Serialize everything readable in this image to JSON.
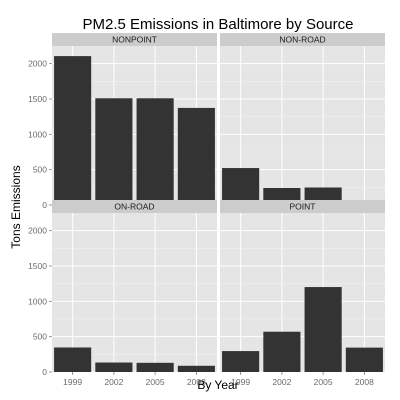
{
  "chart_data": {
    "type": "bar",
    "title": "PM2.5 Emissions in Baltimore by Source",
    "xlabel": "By Year",
    "ylabel": "Tons Emissions",
    "categories": [
      "1999",
      "2002",
      "2005",
      "2008"
    ],
    "ylim": [
      0,
      2250
    ],
    "yticks": [
      0,
      500,
      1000,
      1500,
      2000
    ],
    "facet_layout": "2x2 grid, strip labels on top, shared axes",
    "grid": true,
    "bar_color": "#333333",
    "panel_background": "#e5e5e5",
    "strip_background": "#cccccc",
    "gridline_color": "#ffffff",
    "panels": [
      {
        "label": "NONPOINT",
        "values": [
          2107,
          1510,
          1510,
          1374
        ]
      },
      {
        "label": "NON-ROAD",
        "values": [
          523,
          241,
          248,
          55
        ]
      },
      {
        "label": "ON-ROAD",
        "values": [
          347,
          134,
          130,
          88
        ]
      },
      {
        "label": "POINT",
        "values": [
          296,
          570,
          1202,
          345
        ]
      }
    ]
  }
}
